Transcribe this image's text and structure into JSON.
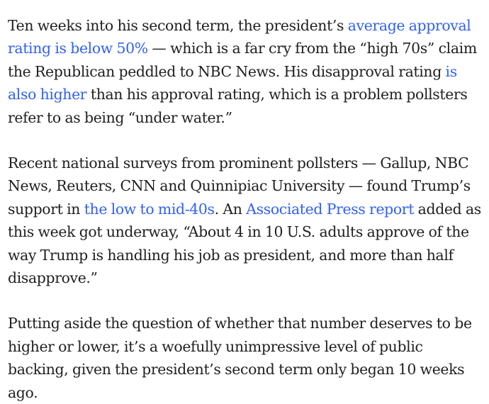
{
  "article": {
    "paragraphs": [
      {
        "segments": [
          {
            "text": "Ten weeks into his second term, the president’s "
          },
          {
            "text": "average approval rating is below 50%",
            "link": true
          },
          {
            "text": " — which is a far cry from the “high 70s” claim the Republican peddled to NBC News. His disapproval rating "
          },
          {
            "text": "is also higher",
            "link": true
          },
          {
            "text": " than his approval rating, which is a problem pollsters refer to as being “under water.”"
          }
        ]
      },
      {
        "segments": [
          {
            "text": "Recent national surveys from prominent pollsters — Gallup, NBC News, Reuters, CNN and Quinnipiac University — found Trump’s support in "
          },
          {
            "text": "the low to mid-40s",
            "link": true
          },
          {
            "text": ". An "
          },
          {
            "text": "Associated Press report",
            "link": true
          },
          {
            "text": " added as this week got underway, “About 4 in 10 U.S. adults approve of the way Trump is handling his job as president, and more than half disapprove.”"
          }
        ]
      },
      {
        "segments": [
          {
            "text": "Putting aside the question of whether that number deserves to be higher or lower, it’s a woefully unimpressive level of public backing, given the president’s second term only began 10 weeks ago."
          }
        ]
      }
    ]
  },
  "colors": {
    "text": "#1f1f1f",
    "link": "#3061f2",
    "background": "#ffffff"
  }
}
